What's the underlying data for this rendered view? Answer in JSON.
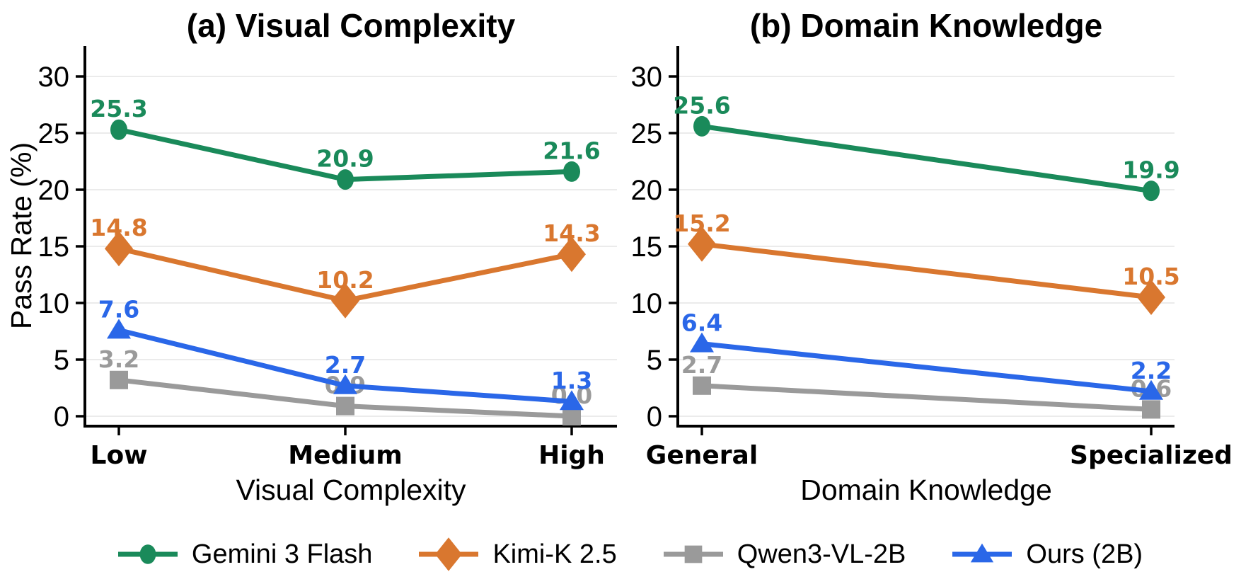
{
  "chart_data": [
    {
      "type": "line",
      "title": "(a) Visual Complexity",
      "xlabel": "Visual Complexity",
      "ylabel": "Pass Rate (%)",
      "categories": [
        "Low",
        "Medium",
        "High"
      ],
      "yticks": [
        0,
        5,
        10,
        15,
        20,
        25,
        30
      ],
      "ylim": [
        0,
        32.5
      ],
      "grid": true,
      "legend_position": "bottom",
      "series": [
        {
          "name": "Gemini 3 Flash",
          "marker": "circle",
          "color": "#1a8a5a",
          "values": [
            25.3,
            20.9,
            21.6
          ]
        },
        {
          "name": "Kimi-K 2.5",
          "marker": "diamond",
          "color": "#d9772f",
          "values": [
            14.8,
            10.2,
            14.3
          ]
        },
        {
          "name": "Qwen3-VL-2B",
          "marker": "square",
          "color": "#9a9a9a",
          "values": [
            3.2,
            0.9,
            0.0
          ]
        },
        {
          "name": "Ours (2B)",
          "marker": "triangle",
          "color": "#2a67e8",
          "values": [
            7.6,
            2.7,
            1.3
          ]
        }
      ]
    },
    {
      "type": "line",
      "title": "(b) Domain Knowledge",
      "xlabel": "Domain Knowledge",
      "ylabel": "",
      "categories": [
        "General",
        "Specialized"
      ],
      "yticks": [
        0,
        5,
        10,
        15,
        20,
        25,
        30
      ],
      "ylim": [
        0,
        32.5
      ],
      "grid": true,
      "legend_position": "bottom",
      "series": [
        {
          "name": "Gemini 3 Flash",
          "marker": "circle",
          "color": "#1a8a5a",
          "values": [
            25.6,
            19.9
          ]
        },
        {
          "name": "Kimi-K 2.5",
          "marker": "diamond",
          "color": "#d9772f",
          "values": [
            15.2,
            10.5
          ]
        },
        {
          "name": "Qwen3-VL-2B",
          "marker": "square",
          "color": "#9a9a9a",
          "values": [
            2.7,
            0.6
          ]
        },
        {
          "name": "Ours (2B)",
          "marker": "triangle",
          "color": "#2a67e8",
          "values": [
            6.4,
            2.2
          ]
        }
      ]
    }
  ],
  "legend": {
    "items": [
      {
        "label": "Gemini 3 Flash",
        "marker": "circle",
        "color": "#1a8a5a"
      },
      {
        "label": "Kimi-K 2.5",
        "marker": "diamond",
        "color": "#d9772f"
      },
      {
        "label": "Qwen3-VL-2B",
        "marker": "square",
        "color": "#9a9a9a"
      },
      {
        "label": "Ours (2B)",
        "marker": "triangle",
        "color": "#2a67e8"
      }
    ]
  },
  "colors": {
    "background": "#ffffff",
    "grid": "#ebebeb",
    "axis": "#000000"
  }
}
